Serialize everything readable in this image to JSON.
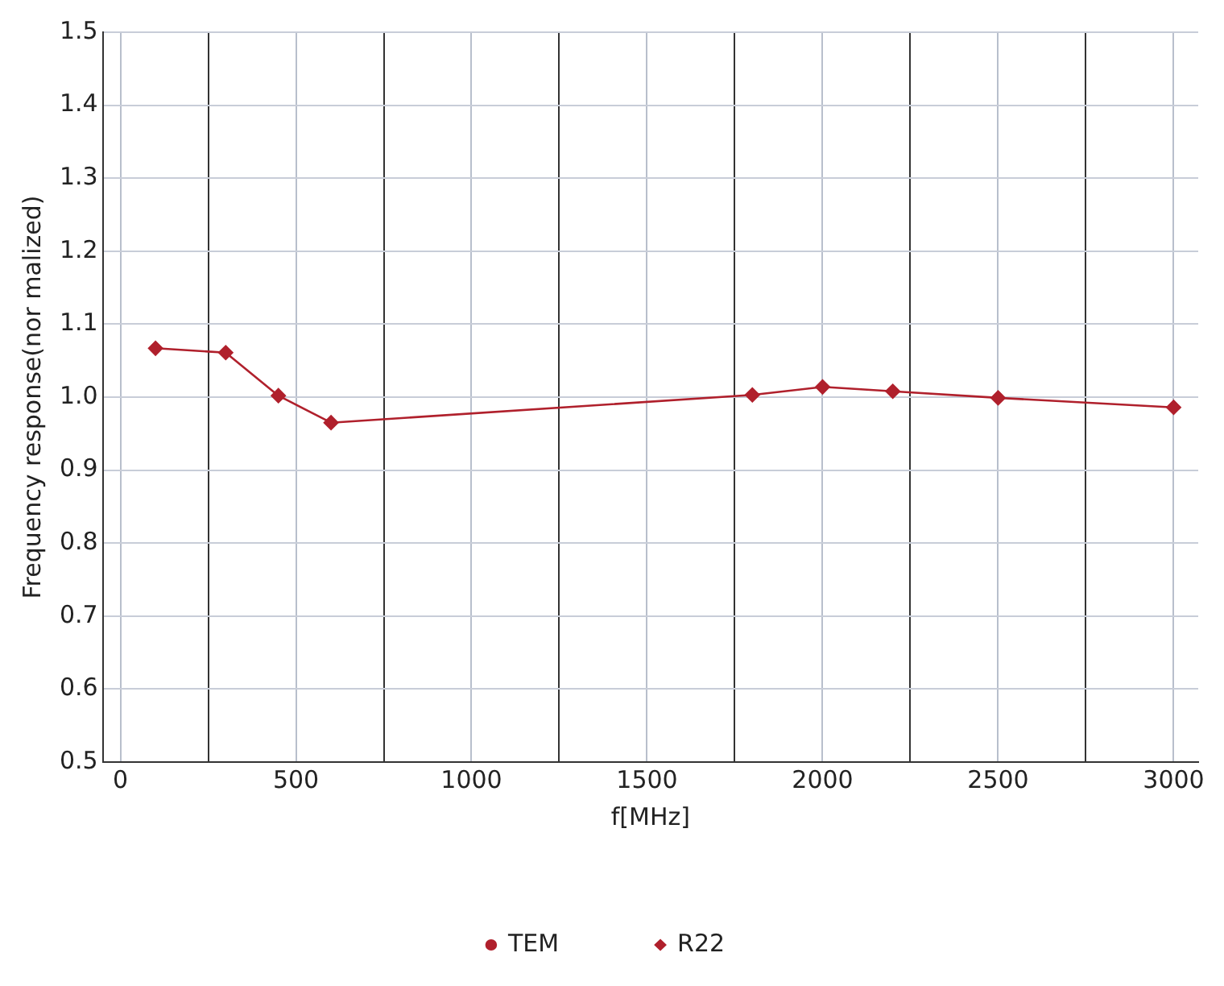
{
  "chart_data": {
    "type": "line",
    "xlabel": "f[MHz]",
    "ylabel": "Frequency response(nor malized)",
    "x": [
      100,
      300,
      450,
      600,
      1800,
      2000,
      2200,
      2500,
      3000
    ],
    "series": [
      {
        "name": "TEM",
        "color": "#b0202c",
        "marker": "circle",
        "values": [
          null,
          null,
          null,
          null,
          null,
          null,
          null,
          null,
          null
        ]
      },
      {
        "name": "R22",
        "color": "#b0202c",
        "marker": "diamond",
        "values": [
          1.067,
          1.061,
          1.002,
          0.965,
          1.003,
          1.014,
          1.008,
          0.999,
          0.986
        ]
      }
    ],
    "xlim": [
      -50,
      3070
    ],
    "xticks": [
      0,
      {
        "value": 250,
        "label": null
      },
      500,
      {
        "value": 750,
        "label": null
      },
      1000,
      {
        "value": 1250,
        "label": null
      },
      1500,
      {
        "value": 1750,
        "label": null
      },
      2000,
      {
        "value": 2250,
        "label": null
      },
      2500,
      {
        "value": 2750,
        "label": null
      },
      3000
    ],
    "ylim": [
      0.5,
      1.5
    ],
    "yticks": [
      0.5,
      0.6,
      0.7,
      0.8,
      0.9,
      {
        "value": 1,
        "label": "1.0"
      },
      1.1,
      1.2,
      1.3,
      1.4,
      1.5
    ],
    "grid": true,
    "legend": "bottom",
    "line_style": "solid"
  }
}
